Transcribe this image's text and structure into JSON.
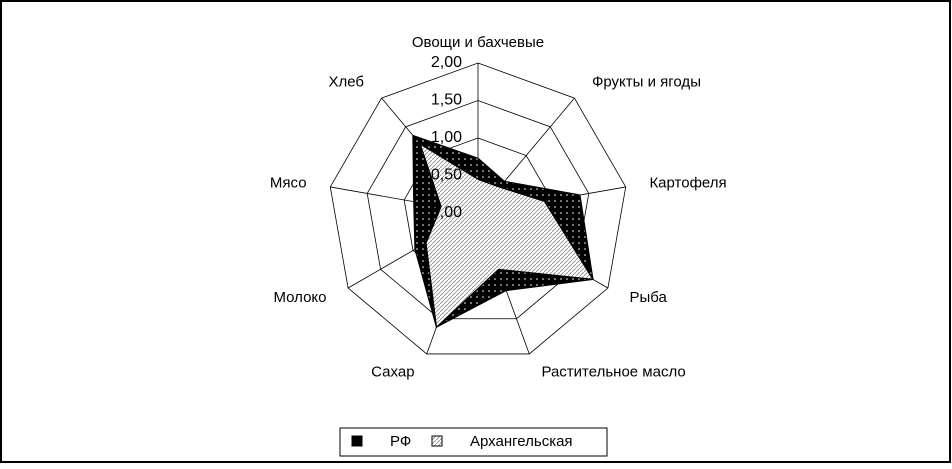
{
  "chart_data": {
    "type": "radar",
    "categories": [
      "Овощи и бахчевые",
      "Фрукты и ягоды",
      "Картофеля",
      "Рыба",
      "Растительное масло",
      "Сахар",
      "Молоко",
      "Мясо",
      "Хлеб"
    ],
    "series": [
      {
        "name": "РФ",
        "color": "#000000",
        "values": [
          0.73,
          0.55,
          1.38,
          1.77,
          1.1,
          1.62,
          0.97,
          0.87,
          1.35
        ]
      },
      {
        "name": "Архангельская",
        "color": "#d0d0d0",
        "values": [
          0.45,
          0.45,
          0.9,
          1.77,
          0.8,
          1.62,
          0.8,
          0.5,
          1.2
        ]
      }
    ],
    "ylim": [
      0,
      2
    ],
    "yticks": [
      {
        "value": 0,
        "label": "0,00"
      },
      {
        "value": 0.5,
        "label": "0,50"
      },
      {
        "value": 1,
        "label": "1,00"
      },
      {
        "value": 1.5,
        "label": "1,50"
      },
      {
        "value": 2,
        "label": "2,00"
      }
    ],
    "grid": true
  }
}
